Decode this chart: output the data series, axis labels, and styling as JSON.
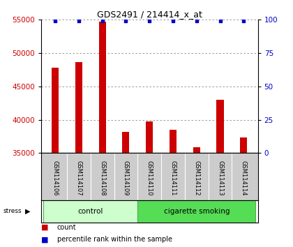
{
  "title": "GDS2491 / 214414_x_at",
  "samples": [
    "GSM114106",
    "GSM114107",
    "GSM114108",
    "GSM114109",
    "GSM114110",
    "GSM114111",
    "GSM114112",
    "GSM114113",
    "GSM114114"
  ],
  "counts": [
    47800,
    48600,
    54700,
    38200,
    39800,
    38500,
    35900,
    43000,
    37400
  ],
  "percentile_values": [
    99,
    99,
    99,
    99,
    99,
    99,
    99,
    99,
    99
  ],
  "groups": [
    {
      "name": "control",
      "indices": [
        0,
        1,
        2,
        3
      ],
      "color": "#ccffcc",
      "edge_color": "#55aa55"
    },
    {
      "name": "cigarette smoking",
      "indices": [
        4,
        5,
        6,
        7,
        8
      ],
      "color": "#55dd55",
      "edge_color": "#55aa55"
    }
  ],
  "bar_color": "#cc0000",
  "dot_color": "#0000cc",
  "ylim_left": [
    35000,
    55000
  ],
  "ylim_right": [
    0,
    100
  ],
  "yticks_left": [
    35000,
    40000,
    45000,
    50000,
    55000
  ],
  "yticks_right": [
    0,
    25,
    50,
    75,
    100
  ],
  "ylabel_left_color": "#cc0000",
  "ylabel_right_color": "#0000cc",
  "grid_color": "#888888",
  "background_color": "#ffffff",
  "tick_label_area_color": "#cccccc",
  "stress_label": "stress",
  "legend_count_label": "count",
  "legend_percentile_label": "percentile rank within the sample",
  "bar_width": 0.3
}
